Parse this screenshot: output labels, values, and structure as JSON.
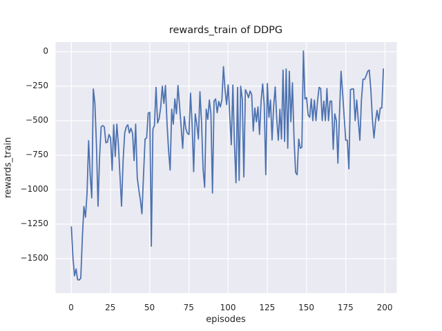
{
  "figure": {
    "title": "rewards_train of DDPG"
  },
  "chart_data": {
    "type": "line",
    "title": "rewards_train of DDPG",
    "xlabel": "episodes",
    "ylabel": "rewards_train",
    "x_ticks": [
      0,
      25,
      50,
      75,
      100,
      125,
      150,
      175,
      200
    ],
    "y_ticks": [
      0,
      -250,
      -500,
      -750,
      -1000,
      -1250,
      -1500
    ],
    "xlim": [
      -10.13,
      207.6
    ],
    "ylim": [
      -1750,
      70
    ],
    "grid": true,
    "legend": false,
    "style": {
      "figure_bg": "#ffffff",
      "axes_bg": "#eaeaf2",
      "grid_color": "#ffffff",
      "line_color": "#4c72b0",
      "text_color": "#262626"
    },
    "x_start": 0,
    "x_step": 1,
    "n_points": 200,
    "series": [
      {
        "name": "rewards_train",
        "values": [
          -1270,
          -1490,
          -1625,
          -1575,
          -1653,
          -1655,
          -1642,
          -1350,
          -1122,
          -1200,
          -1025,
          -645,
          -890,
          -1060,
          -270,
          -375,
          -675,
          -1120,
          -760,
          -545,
          -535,
          -545,
          -660,
          -655,
          -600,
          -625,
          -860,
          -530,
          -760,
          -525,
          -675,
          -900,
          -1120,
          -790,
          -590,
          -545,
          -530,
          -590,
          -555,
          -590,
          -790,
          -525,
          -910,
          -1000,
          -1075,
          -1175,
          -900,
          -633,
          -625,
          -445,
          -440,
          -1410,
          -560,
          -535,
          -258,
          -517,
          -483,
          -400,
          -250,
          -375,
          -245,
          -517,
          -717,
          -858,
          -417,
          -525,
          -342,
          -450,
          -245,
          -392,
          -542,
          -700,
          -470,
          -558,
          -592,
          -600,
          -300,
          -525,
          -870,
          -450,
          -525,
          -633,
          -290,
          -508,
          -850,
          -983,
          -417,
          -490,
          -350,
          -450,
          -1025,
          -358,
          -342,
          -442,
          -360,
          -400,
          -350,
          -108,
          -275,
          -383,
          -240,
          -458,
          -675,
          -242,
          -667,
          -950,
          -258,
          -933,
          -250,
          -342,
          -908,
          -275,
          -300,
          -333,
          -285,
          -310,
          -575,
          -408,
          -508,
          -400,
          -600,
          -358,
          -233,
          -383,
          -892,
          -230,
          -475,
          -350,
          -640,
          -400,
          -255,
          -492,
          -642,
          -417,
          -633,
          -133,
          -650,
          -125,
          -700,
          -142,
          -508,
          -225,
          -625,
          -875,
          -892,
          -633,
          -700,
          -692,
          5,
          -342,
          -333,
          -458,
          -475,
          -342,
          -500,
          -350,
          -500,
          -358,
          -258,
          -267,
          -500,
          -358,
          -500,
          -267,
          -500,
          -358,
          -358,
          -708,
          -450,
          -500,
          -808,
          -450,
          -142,
          -300,
          -475,
          -642,
          -642,
          -850,
          -275,
          -270,
          -270,
          -500,
          -350,
          -500,
          -642,
          -350,
          -200,
          -200,
          -175,
          -142,
          -133,
          -275,
          -490,
          -625,
          -500,
          -425,
          -500,
          -408,
          -408,
          -125
        ]
      }
    ]
  }
}
